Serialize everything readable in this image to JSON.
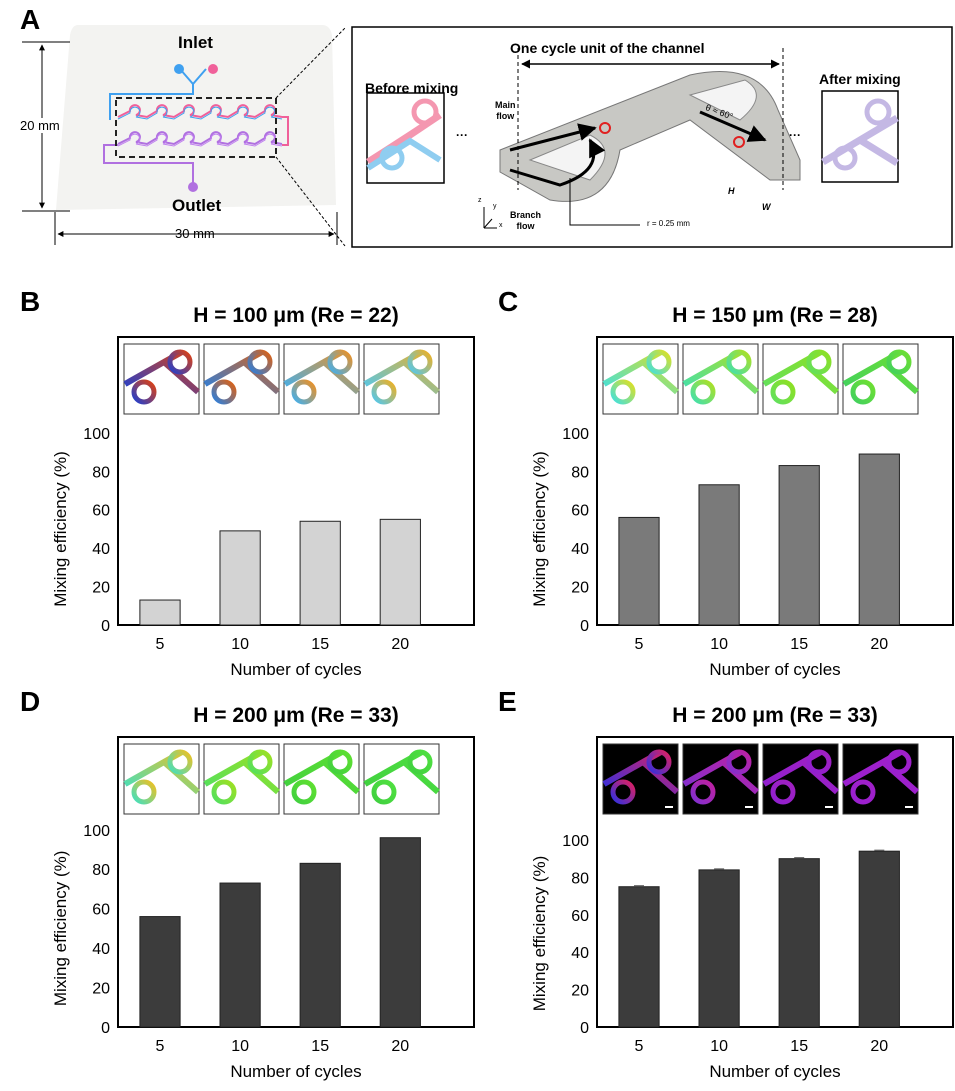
{
  "panel_a": {
    "label": "A",
    "inlet": "Inlet",
    "outlet": "Outlet",
    "height_dim": "20 mm",
    "width_dim": "30 mm",
    "before": "Before mixing",
    "after": "After mixing",
    "cycle_unit": "One cycle unit of the channel",
    "main_flow": [
      "Main",
      "flow"
    ],
    "branch_flow": [
      "Branch",
      "flow"
    ],
    "radius": "r = 0.25 mm",
    "angle": "θ ≈ 60°",
    "H": "H",
    "W": "W",
    "axes": [
      "z",
      "y",
      "x"
    ],
    "ellipsis": "···",
    "colors": {
      "inlet_a": "#3fa0f0",
      "inlet_b": "#f0609a",
      "mixed": "#b070e0",
      "before_pink": "#f497b0",
      "before_blue": "#8fcdf0",
      "after": "#c4b8e4",
      "chip": "#f3f3f1",
      "channel": "#c8c8c4",
      "vortex": "#e02020"
    }
  },
  "chart_data": [
    {
      "id": "B",
      "label": "B",
      "type": "bar",
      "title": "H = 100 μm (Re = 22)",
      "xlabel": "Number of cycles",
      "ylabel": "Mixing efficiency (%)",
      "categories": [
        "5",
        "10",
        "15",
        "20"
      ],
      "values": [
        13,
        49,
        54,
        55
      ],
      "ylim": [
        0,
        100
      ],
      "yticks": [
        "0",
        "20",
        "40",
        "60",
        "80",
        "100"
      ],
      "bar_color": "#d3d3d3",
      "error_bars": false,
      "grid": false,
      "insets": [
        [
          "#2040d0",
          "#e04010"
        ],
        [
          "#2a80e0",
          "#e06010"
        ],
        [
          "#40b0f0",
          "#f09020"
        ],
        [
          "#50c8f0",
          "#f0b020"
        ]
      ],
      "inset_bg": "#ffffff"
    },
    {
      "id": "C",
      "label": "C",
      "type": "bar",
      "title": "H = 150 μm (Re = 28)",
      "xlabel": "Number of cycles",
      "ylabel": "Mixing efficiency (%)",
      "categories": [
        "5",
        "10",
        "15",
        "20"
      ],
      "values": [
        56,
        73,
        83,
        89
      ],
      "ylim": [
        0,
        100
      ],
      "yticks": [
        "0",
        "20",
        "40",
        "60",
        "80",
        "100"
      ],
      "bar_color": "#7a7a7a",
      "error_bars": false,
      "grid": false,
      "insets": [
        [
          "#40e0e0",
          "#e0e020"
        ],
        [
          "#40e0b0",
          "#b0e020"
        ],
        [
          "#60e060",
          "#90e020"
        ],
        [
          "#40d060",
          "#70e030"
        ]
      ],
      "inset_bg": "#ffffff"
    },
    {
      "id": "D",
      "label": "D",
      "type": "bar",
      "title": "H = 200 μm (Re = 33)",
      "xlabel": "Number of cycles",
      "ylabel": "Mixing efficiency (%)",
      "categories": [
        "5",
        "10",
        "15",
        "20"
      ],
      "values": [
        56,
        73,
        83,
        96
      ],
      "ylim": [
        0,
        100
      ],
      "yticks": [
        "0",
        "20",
        "40",
        "60",
        "80",
        "100"
      ],
      "bar_color": "#3c3c3c",
      "error_bars": false,
      "grid": false,
      "insets": [
        [
          "#40e0c0",
          "#f0c020"
        ],
        [
          "#50e060",
          "#a0e020"
        ],
        [
          "#40d040",
          "#60e030"
        ],
        [
          "#40d040",
          "#50e040"
        ]
      ],
      "inset_bg": "#ffffff"
    },
    {
      "id": "E",
      "label": "E",
      "type": "bar",
      "title": "H = 200 μm (Re = 33)",
      "xlabel": "Number of cycles",
      "ylabel": "Mixing efficiency (%)",
      "categories": [
        "5",
        "10",
        "15",
        "20"
      ],
      "values": [
        75,
        84,
        90,
        94
      ],
      "ylim": [
        0,
        100
      ],
      "yticks": [
        "0",
        "20",
        "40",
        "60",
        "80",
        "100"
      ],
      "bar_color": "#3c3c3c",
      "error_bars": true,
      "grid": false,
      "insets": [
        [
          "#3030e0",
          "#e02060"
        ],
        [
          "#8030d0",
          "#c020a0"
        ],
        [
          "#9020d0",
          "#a020c0"
        ],
        [
          "#9a20d0",
          "#a020c8"
        ]
      ],
      "inset_bg": "#000000"
    }
  ]
}
